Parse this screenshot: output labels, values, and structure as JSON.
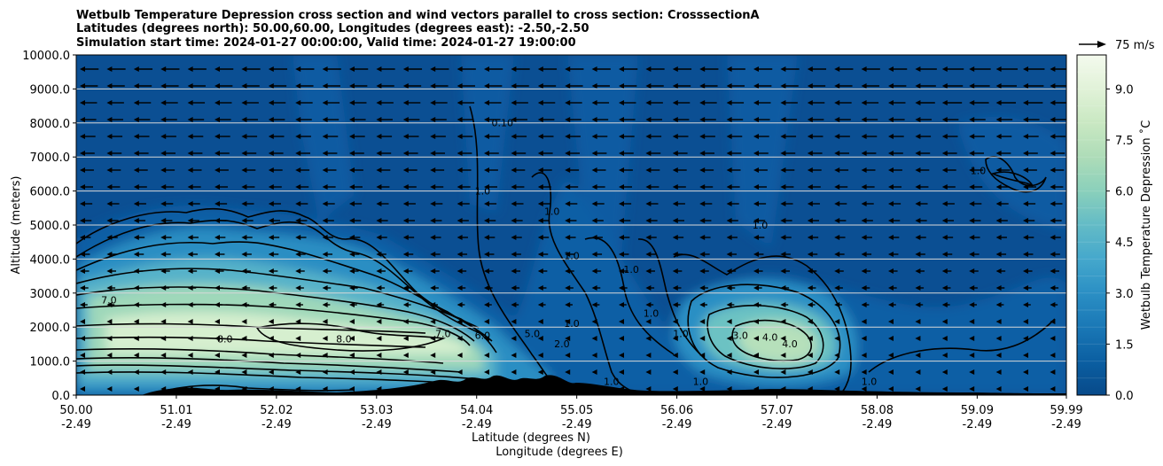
{
  "chart_data": {
    "type": "contour",
    "title_lines": [
      "Wetbulb Temperature Depression cross section and wind vectors parallel to cross section: CrosssectionA",
      "Latitudes (degrees north): 50.00,60.00, Longitudes (degrees east): -2.50,-2.50",
      "Simulation start time: 2024-01-27 00:00:00, Valid time: 2024-01-27 19:00:00"
    ],
    "ylabel": "Altitude (meters)",
    "xlabel_lat": "Latitude (degrees N)",
    "xlabel_lon": "Longitude (degrees E)",
    "ylim": [
      0,
      10000
    ],
    "yticks": [
      "0.0",
      "1000.0",
      "2000.0",
      "3000.0",
      "4000.0",
      "5000.0",
      "6000.0",
      "7000.0",
      "8000.0",
      "9000.0",
      "10000.0"
    ],
    "xlim": [
      50.0,
      59.99
    ],
    "xtick_values": [
      50.0,
      51.01,
      52.02,
      53.03,
      54.04,
      55.05,
      56.06,
      57.07,
      58.08,
      59.09,
      59.99
    ],
    "xticks_lat": [
      "50.00",
      "51.01",
      "52.02",
      "53.03",
      "54.04",
      "55.05",
      "56.06",
      "57.07",
      "58.08",
      "59.09",
      "59.99"
    ],
    "xticks_lon": [
      "-2.49",
      "-2.49",
      "-2.49",
      "-2.49",
      "-2.49",
      "-2.49",
      "-2.49",
      "-2.49",
      "-2.49",
      "-2.49",
      "-2.49"
    ],
    "colorbar": {
      "label": "Wetbulb Temperature Depression ˚C",
      "range": [
        0,
        10
      ],
      "ticks": [
        "0.0",
        "1.5",
        "3.0",
        "4.5",
        "6.0",
        "7.5",
        "9.0"
      ],
      "tick_values": [
        0,
        1.5,
        3.0,
        4.5,
        6.0,
        7.5,
        9.0
      ]
    },
    "quiver_key": "75 m/s",
    "contour_labels": [
      {
        "text": "7.0",
        "lat": 50.33,
        "alt": 2700
      },
      {
        "text": "8.0",
        "lat": 51.5,
        "alt": 1550
      },
      {
        "text": "8.0",
        "lat": 52.7,
        "alt": 1550
      },
      {
        "text": "7.0",
        "lat": 53.7,
        "alt": 1700
      },
      {
        "text": "6.0",
        "lat": 54.1,
        "alt": 1650
      },
      {
        "text": "5.0",
        "lat": 54.6,
        "alt": 1700
      },
      {
        "text": "2.0",
        "lat": 54.9,
        "alt": 1400
      },
      {
        "text": "1.0",
        "lat": 55.0,
        "alt": 2000
      },
      {
        "text": "1.0",
        "lat": 54.1,
        "alt": 5900
      },
      {
        "text": "1.0",
        "lat": 54.8,
        "alt": 5300
      },
      {
        "text": "1.0",
        "lat": 55.0,
        "alt": 4000
      },
      {
        "text": "1.0",
        "lat": 55.6,
        "alt": 3600
      },
      {
        "text": "1.0",
        "lat": 55.8,
        "alt": 2300
      },
      {
        "text": "1.0",
        "lat": 56.1,
        "alt": 1700
      },
      {
        "text": "1.0",
        "lat": 56.9,
        "alt": 4900
      },
      {
        "text": "1.0",
        "lat": 59.1,
        "alt": 6500
      },
      {
        "text": "0.10",
        "lat": 54.3,
        "alt": 7900
      },
      {
        "text": "3.0",
        "lat": 56.7,
        "alt": 1650
      },
      {
        "text": "4.0",
        "lat": 57.0,
        "alt": 1600
      },
      {
        "text": "4.0",
        "lat": 57.2,
        "alt": 1400
      },
      {
        "text": "1.0",
        "lat": 55.4,
        "alt": 300
      },
      {
        "text": "1.0",
        "lat": 56.3,
        "alt": 300
      },
      {
        "text": "1.0",
        "lat": 58.0,
        "alt": 300
      }
    ]
  }
}
